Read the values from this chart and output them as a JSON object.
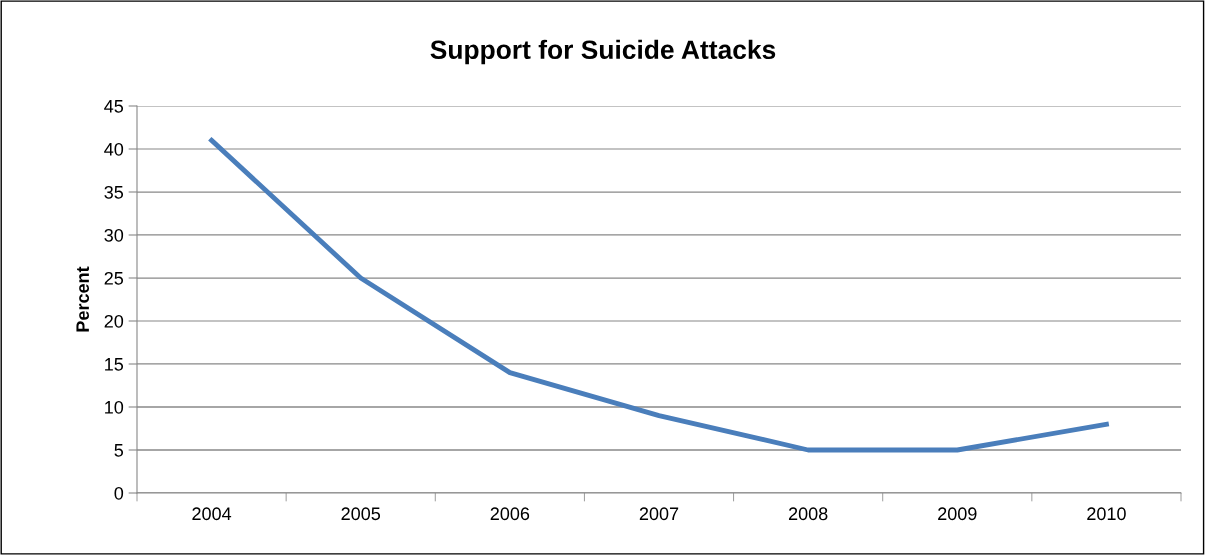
{
  "chart_data": {
    "type": "line",
    "title": "Support for Suicide Attacks",
    "ylabel": "Percent",
    "categories": [
      "2004",
      "2005",
      "2006",
      "2007",
      "2008",
      "2009",
      "2010"
    ],
    "series": [
      {
        "color": "#4a7ebb",
        "values": [
          41,
          25,
          14,
          9,
          5,
          5,
          8
        ]
      }
    ],
    "ylim": [
      0,
      45
    ],
    "yticks": [
      0,
      5,
      10,
      15,
      20,
      25,
      30,
      35,
      40,
      45
    ],
    "grid": "y",
    "marker": "none",
    "line_style": "solid"
  }
}
